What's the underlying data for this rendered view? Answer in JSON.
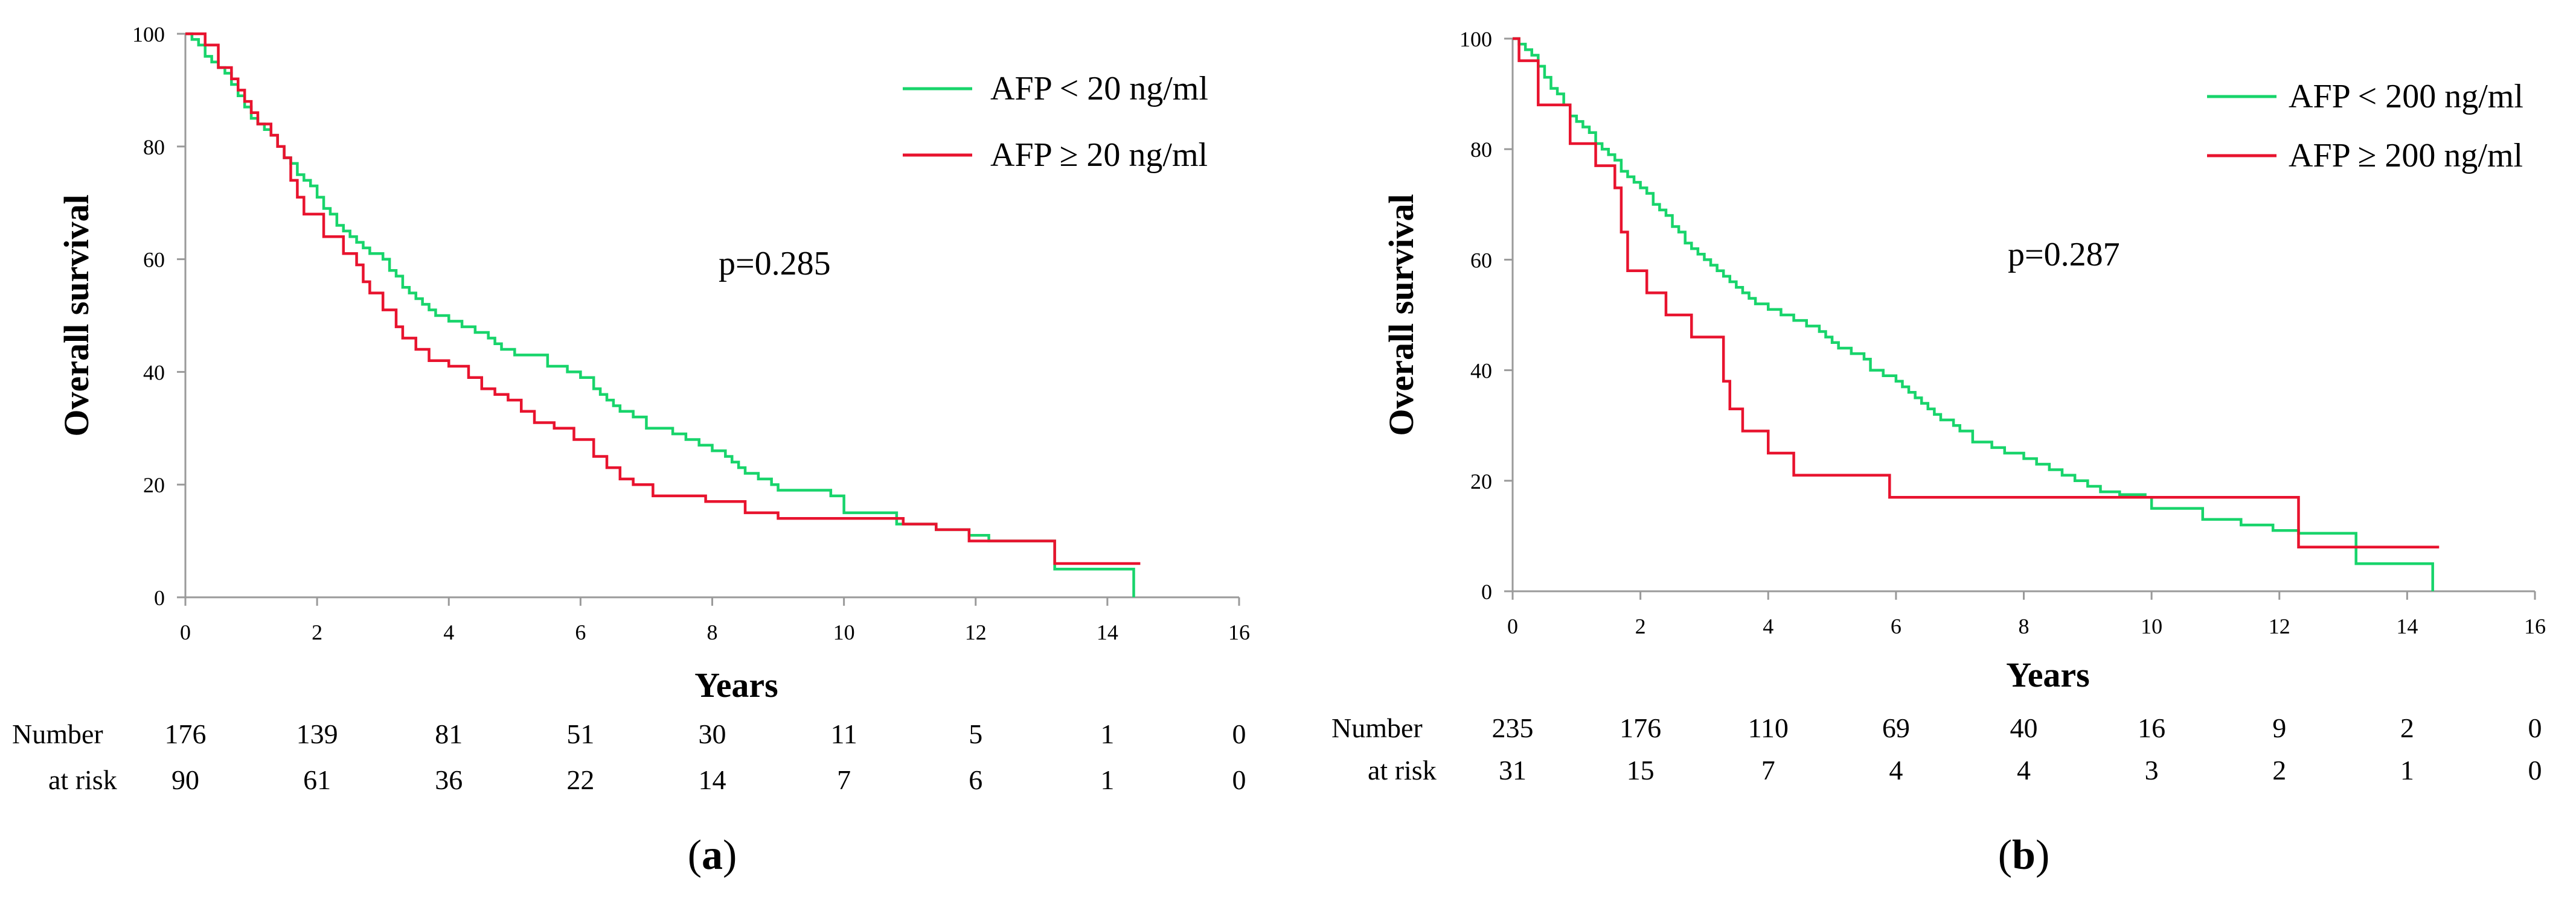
{
  "colors": {
    "green": "#18d46b",
    "red": "#e8132e",
    "axis": "#9a9a9a"
  },
  "chart_data": [
    {
      "type": "line",
      "panel_label_parts": [
        "(",
        "a",
        ")"
      ],
      "xlabel": "Years",
      "ylabel": "Overall survival",
      "xlim": [
        0,
        16
      ],
      "ylim": [
        0,
        100
      ],
      "xticks": [
        "0",
        "2",
        "4",
        "6",
        "8",
        "10",
        "12",
        "14",
        "16"
      ],
      "yticks": [
        "0",
        "20",
        "40",
        "60",
        "80",
        "100"
      ],
      "pvalue": "p=0.285",
      "legend_position": "top-right",
      "series": [
        {
          "name": "AFP < 20 ng/ml",
          "color": "green",
          "points": [
            [
              0,
              100
            ],
            [
              0.1,
              99
            ],
            [
              0.2,
              98
            ],
            [
              0.3,
              96
            ],
            [
              0.4,
              95
            ],
            [
              0.5,
              94
            ],
            [
              0.6,
              93
            ],
            [
              0.7,
              91
            ],
            [
              0.8,
              89
            ],
            [
              0.9,
              87
            ],
            [
              1.0,
              85
            ],
            [
              1.1,
              84
            ],
            [
              1.2,
              83
            ],
            [
              1.3,
              82
            ],
            [
              1.4,
              80
            ],
            [
              1.5,
              78
            ],
            [
              1.6,
              77
            ],
            [
              1.7,
              75
            ],
            [
              1.8,
              74
            ],
            [
              1.9,
              73
            ],
            [
              2.0,
              71
            ],
            [
              2.1,
              69
            ],
            [
              2.2,
              68
            ],
            [
              2.3,
              66
            ],
            [
              2.4,
              65
            ],
            [
              2.5,
              64
            ],
            [
              2.6,
              63
            ],
            [
              2.7,
              62
            ],
            [
              2.8,
              61
            ],
            [
              3.0,
              60
            ],
            [
              3.1,
              58
            ],
            [
              3.2,
              57
            ],
            [
              3.3,
              55
            ],
            [
              3.4,
              54
            ],
            [
              3.5,
              53
            ],
            [
              3.6,
              52
            ],
            [
              3.7,
              51
            ],
            [
              3.8,
              50
            ],
            [
              4.0,
              49
            ],
            [
              4.2,
              48
            ],
            [
              4.4,
              47
            ],
            [
              4.6,
              46
            ],
            [
              4.7,
              45
            ],
            [
              4.8,
              44
            ],
            [
              5.0,
              43
            ],
            [
              5.5,
              41
            ],
            [
              5.8,
              40
            ],
            [
              6.0,
              39
            ],
            [
              6.2,
              37
            ],
            [
              6.3,
              36
            ],
            [
              6.4,
              35
            ],
            [
              6.5,
              34
            ],
            [
              6.6,
              33
            ],
            [
              6.8,
              32
            ],
            [
              7.0,
              30
            ],
            [
              7.4,
              29
            ],
            [
              7.6,
              28
            ],
            [
              7.8,
              27
            ],
            [
              8.0,
              26
            ],
            [
              8.2,
              25
            ],
            [
              8.3,
              24
            ],
            [
              8.4,
              23
            ],
            [
              8.5,
              22
            ],
            [
              8.7,
              21
            ],
            [
              8.9,
              20
            ],
            [
              9.0,
              19
            ],
            [
              9.8,
              18
            ],
            [
              10.0,
              15
            ],
            [
              10.8,
              13
            ],
            [
              11.4,
              12
            ],
            [
              11.9,
              11
            ],
            [
              12.2,
              10
            ],
            [
              13.2,
              5
            ],
            [
              14.4,
              0
            ]
          ]
        },
        {
          "name": "AFP ≥ 20 ng/ml",
          "color": "red",
          "points": [
            [
              0,
              100
            ],
            [
              0.3,
              98
            ],
            [
              0.5,
              94
            ],
            [
              0.7,
              92
            ],
            [
              0.8,
              90
            ],
            [
              0.9,
              88
            ],
            [
              1.0,
              86
            ],
            [
              1.1,
              84
            ],
            [
              1.3,
              82
            ],
            [
              1.4,
              80
            ],
            [
              1.5,
              78
            ],
            [
              1.6,
              74
            ],
            [
              1.7,
              71
            ],
            [
              1.8,
              68
            ],
            [
              2.1,
              64
            ],
            [
              2.4,
              61
            ],
            [
              2.6,
              59
            ],
            [
              2.7,
              56
            ],
            [
              2.8,
              54
            ],
            [
              3.0,
              51
            ],
            [
              3.2,
              48
            ],
            [
              3.3,
              46
            ],
            [
              3.5,
              44
            ],
            [
              3.7,
              42
            ],
            [
              4.0,
              41
            ],
            [
              4.3,
              39
            ],
            [
              4.5,
              37
            ],
            [
              4.7,
              36
            ],
            [
              4.9,
              35
            ],
            [
              5.1,
              33
            ],
            [
              5.3,
              31
            ],
            [
              5.6,
              30
            ],
            [
              5.9,
              28
            ],
            [
              6.2,
              25
            ],
            [
              6.4,
              23
            ],
            [
              6.6,
              21
            ],
            [
              6.8,
              20
            ],
            [
              7.1,
              18
            ],
            [
              7.9,
              17
            ],
            [
              8.5,
              15
            ],
            [
              9.0,
              14
            ],
            [
              10.9,
              13
            ],
            [
              11.4,
              12
            ],
            [
              11.9,
              10
            ],
            [
              13.2,
              6
            ],
            [
              14.5,
              6
            ]
          ]
        }
      ],
      "risk_table": {
        "label_line1": "Number",
        "label_line2": "at risk",
        "rows": [
          [
            "176",
            "139",
            "81",
            "51",
            "30",
            "11",
            "5",
            "1",
            "0"
          ],
          [
            "90",
            "61",
            "36",
            "22",
            "14",
            "7",
            "6",
            "1",
            "0"
          ]
        ]
      }
    },
    {
      "type": "line",
      "panel_label_parts": [
        "(",
        "b",
        ")"
      ],
      "xlabel": "Years",
      "ylabel": "Overall survival",
      "xlim": [
        0,
        16
      ],
      "ylim": [
        0,
        100
      ],
      "xticks": [
        "0",
        "2",
        "4",
        "6",
        "8",
        "10",
        "12",
        "14",
        "16"
      ],
      "yticks": [
        "0",
        "20",
        "40",
        "60",
        "80",
        "100"
      ],
      "pvalue": "p=0.287",
      "legend_position": "top-right",
      "series": [
        {
          "name": "AFP < 200 ng/ml",
          "color": "green",
          "points": [
            [
              0,
              100
            ],
            [
              0.1,
              99
            ],
            [
              0.2,
              98
            ],
            [
              0.3,
              97
            ],
            [
              0.4,
              95
            ],
            [
              0.5,
              93
            ],
            [
              0.6,
              91
            ],
            [
              0.7,
              90
            ],
            [
              0.8,
              88
            ],
            [
              0.9,
              86
            ],
            [
              1.0,
              85
            ],
            [
              1.1,
              84
            ],
            [
              1.2,
              83
            ],
            [
              1.3,
              81
            ],
            [
              1.4,
              80
            ],
            [
              1.5,
              79
            ],
            [
              1.6,
              78
            ],
            [
              1.7,
              76
            ],
            [
              1.8,
              75
            ],
            [
              1.9,
              74
            ],
            [
              2.0,
              73
            ],
            [
              2.1,
              72
            ],
            [
              2.2,
              70
            ],
            [
              2.3,
              69
            ],
            [
              2.4,
              68
            ],
            [
              2.5,
              66
            ],
            [
              2.6,
              65
            ],
            [
              2.7,
              63
            ],
            [
              2.8,
              62
            ],
            [
              2.9,
              61
            ],
            [
              3.0,
              60
            ],
            [
              3.1,
              59
            ],
            [
              3.2,
              58
            ],
            [
              3.3,
              57
            ],
            [
              3.4,
              56
            ],
            [
              3.5,
              55
            ],
            [
              3.6,
              54
            ],
            [
              3.7,
              53
            ],
            [
              3.8,
              52
            ],
            [
              4.0,
              51
            ],
            [
              4.2,
              50
            ],
            [
              4.4,
              49
            ],
            [
              4.6,
              48
            ],
            [
              4.8,
              47
            ],
            [
              4.9,
              46
            ],
            [
              5.0,
              45
            ],
            [
              5.1,
              44
            ],
            [
              5.3,
              43
            ],
            [
              5.5,
              42
            ],
            [
              5.6,
              40
            ],
            [
              5.8,
              39
            ],
            [
              6.0,
              38
            ],
            [
              6.1,
              37
            ],
            [
              6.2,
              36
            ],
            [
              6.3,
              35
            ],
            [
              6.4,
              34
            ],
            [
              6.5,
              33
            ],
            [
              6.6,
              32
            ],
            [
              6.7,
              31
            ],
            [
              6.9,
              30
            ],
            [
              7.0,
              29
            ],
            [
              7.2,
              27
            ],
            [
              7.5,
              26
            ],
            [
              7.7,
              25
            ],
            [
              8.0,
              24
            ],
            [
              8.2,
              23
            ],
            [
              8.4,
              22
            ],
            [
              8.6,
              21
            ],
            [
              8.8,
              20
            ],
            [
              9.0,
              19
            ],
            [
              9.2,
              18
            ],
            [
              9.5,
              17.5
            ],
            [
              9.9,
              17
            ],
            [
              10.0,
              15
            ],
            [
              10.8,
              13
            ],
            [
              11.4,
              12
            ],
            [
              11.9,
              11
            ],
            [
              12.3,
              10.5
            ],
            [
              13.2,
              5
            ],
            [
              14.4,
              0
            ]
          ]
        },
        {
          "name": "AFP ≥ 200 ng/ml",
          "color": "red",
          "points": [
            [
              0,
              100
            ],
            [
              0.1,
              96
            ],
            [
              0.4,
              88
            ],
            [
              0.9,
              81
            ],
            [
              1.3,
              77
            ],
            [
              1.6,
              73
            ],
            [
              1.7,
              65
            ],
            [
              1.8,
              58
            ],
            [
              2.1,
              54
            ],
            [
              2.4,
              50
            ],
            [
              2.8,
              46
            ],
            [
              3.3,
              38
            ],
            [
              3.4,
              33
            ],
            [
              3.6,
              29
            ],
            [
              4.0,
              25
            ],
            [
              4.4,
              21
            ],
            [
              5.9,
              17
            ],
            [
              12.3,
              8
            ],
            [
              14.5,
              8
            ]
          ]
        }
      ],
      "risk_table": {
        "label_line1": "Number",
        "label_line2": "at risk",
        "rows": [
          [
            "235",
            "176",
            "110",
            "69",
            "40",
            "16",
            "9",
            "2",
            "0"
          ],
          [
            "31",
            "15",
            "7",
            "4",
            "4",
            "3",
            "2",
            "1",
            "0"
          ]
        ]
      }
    }
  ]
}
